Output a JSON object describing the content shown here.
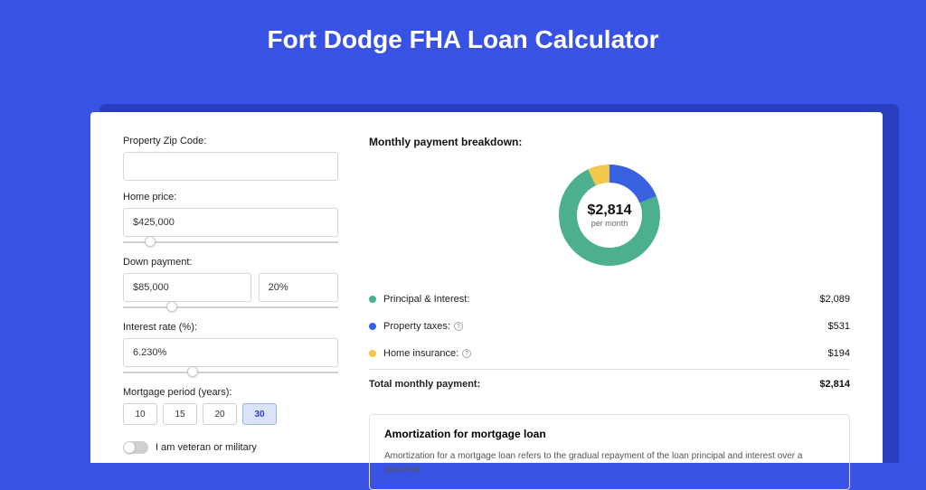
{
  "page_title": "Fort Dodge FHA Loan Calculator",
  "colors": {
    "bg": "#3853e4",
    "principal": "#4caf8f",
    "taxes": "#3862e0",
    "insurance": "#f2c94c"
  },
  "form": {
    "zip": {
      "label": "Property Zip Code:",
      "value": ""
    },
    "home_price": {
      "label": "Home price:",
      "value": "$425,000",
      "slider_pos_pct": 10
    },
    "down_payment": {
      "label": "Down payment:",
      "amount": "$85,000",
      "percent": "20%",
      "slider_pos_pct": 20
    },
    "interest": {
      "label": "Interest rate (%):",
      "value": "6.230%",
      "slider_pos_pct": 30
    },
    "period": {
      "label": "Mortgage period (years):",
      "options": [
        "10",
        "15",
        "20",
        "30"
      ],
      "selected": "30"
    },
    "veteran": {
      "label": "I am veteran or military",
      "checked": false
    }
  },
  "breakdown": {
    "title": "Monthly payment breakdown:",
    "center_amount": "$2,814",
    "center_sub": "per month",
    "items": [
      {
        "label": "Principal & Interest:",
        "value": "$2,089",
        "color": "#4caf8f",
        "has_info": false,
        "fraction": 0.742
      },
      {
        "label": "Property taxes:",
        "value": "$531",
        "color": "#3862e0",
        "has_info": true,
        "fraction": 0.189
      },
      {
        "label": "Home insurance:",
        "value": "$194",
        "color": "#f2c94c",
        "has_info": true,
        "fraction": 0.069
      }
    ],
    "total": {
      "label": "Total monthly payment:",
      "value": "$2,814"
    }
  },
  "amortization": {
    "title": "Amortization for mortgage loan",
    "text": "Amortization for a mortgage loan refers to the gradual repayment of the loan principal and interest over a specified"
  }
}
